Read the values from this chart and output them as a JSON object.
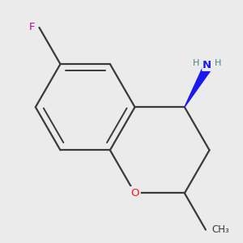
{
  "bg": "#ebebeb",
  "bond_color": "#3a3a3a",
  "N_color": "#1a1aee",
  "O_color": "#ee1a1a",
  "F_color": "#cc00aa",
  "H_color": "#4a8585",
  "lw": 1.6,
  "lw_inner": 1.4,
  "scale": 1.25,
  "xlim": [
    -3.0,
    3.0
  ],
  "ylim": [
    -3.0,
    3.0
  ]
}
